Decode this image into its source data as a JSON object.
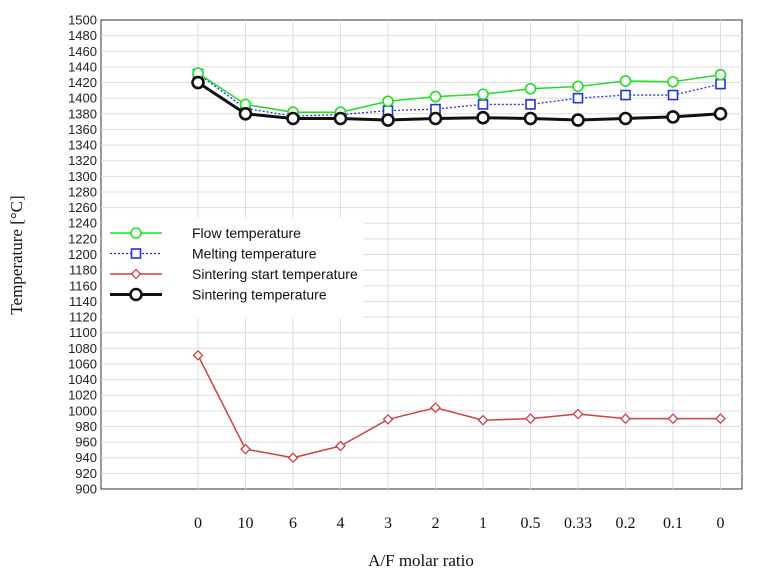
{
  "chart_data": {
    "type": "line",
    "title": "",
    "xlabel": "A/F molar ratio",
    "ylabel": "Temperature [°C]",
    "categories": [
      "0",
      "10",
      "6",
      "4",
      "3",
      "2",
      "1",
      "0.5",
      "0.33",
      "0.2",
      "0.1",
      "0"
    ],
    "ylim": [
      900,
      1500
    ],
    "yticks": [
      900,
      920,
      940,
      960,
      980,
      1000,
      1020,
      1040,
      1060,
      1080,
      1100,
      1120,
      1140,
      1160,
      1180,
      1200,
      1220,
      1240,
      1260,
      1280,
      1300,
      1320,
      1340,
      1360,
      1380,
      1400,
      1420,
      1440,
      1460,
      1480,
      1500
    ],
    "grid": true,
    "legend_position": "center-left",
    "series": [
      {
        "name": "Flow temperature",
        "color": "#22dd22",
        "marker": "circle",
        "line": "solid",
        "values": [
          1432,
          1392,
          1382,
          1382,
          1396,
          1402,
          1405,
          1412,
          1415,
          1422,
          1421,
          1430
        ]
      },
      {
        "name": "Melting temperature",
        "color": "#2233dd",
        "marker": "square",
        "line": "dotted",
        "values": [
          1431,
          1387,
          1377,
          1379,
          1384,
          1386,
          1392,
          1392,
          1400,
          1404,
          1404,
          1418
        ]
      },
      {
        "name": "Sintering start temperature",
        "color": "#d04040",
        "marker": "diamond",
        "line": "solid",
        "values": [
          1071,
          951,
          940,
          955,
          989,
          1004,
          988,
          990,
          996,
          990,
          990,
          990
        ]
      },
      {
        "name": "Sintering temperature",
        "color": "#111111",
        "marker": "circle",
        "line": "bold",
        "values": [
          1420,
          1380,
          1374,
          1374,
          1372,
          1374,
          1375,
          1374,
          1372,
          1374,
          1376,
          1380
        ]
      }
    ]
  }
}
